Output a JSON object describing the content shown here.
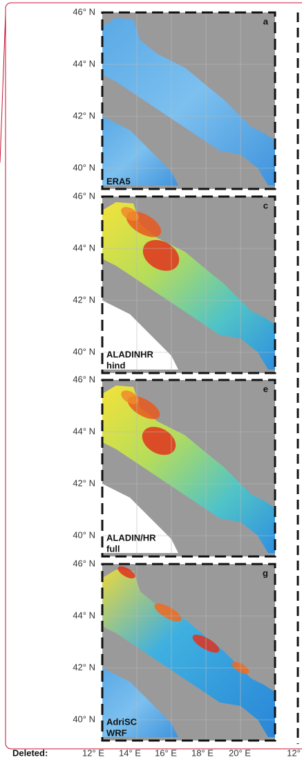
{
  "revision_label": "Deleted:",
  "panels": [
    {
      "letter": "a",
      "label_lines": [
        "ERA5"
      ],
      "lat_ticks": [
        "46° N",
        "44° N",
        "42° N",
        "40° N"
      ]
    },
    {
      "letter": "c",
      "label_lines": [
        "ALADINHR",
        "hind"
      ],
      "lat_ticks": [
        "46° N",
        "44° N",
        "42° N",
        "40° N"
      ]
    },
    {
      "letter": "e",
      "label_lines": [
        "ALADIN/HR",
        "full"
      ],
      "lat_ticks": [
        "46° N",
        "44° N",
        "42° N",
        "40° N"
      ]
    },
    {
      "letter": "g",
      "label_lines": [
        "AdriSC",
        "WRF"
      ],
      "lat_ticks": [
        "46° N",
        "44° N",
        "42° N",
        "40° N"
      ]
    }
  ],
  "lon_ticks": [
    "12° E",
    "14° E",
    "16° E",
    "18° E",
    "20° E",
    "12°"
  ]
}
